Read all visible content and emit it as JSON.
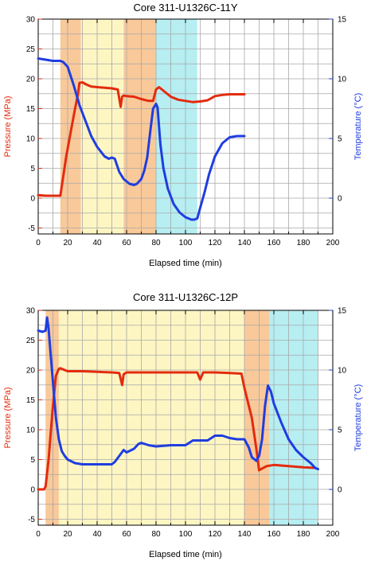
{
  "chart_data": [
    {
      "type": "line",
      "title": "Core 311-U1326C-11Y",
      "xlabel": "Elapsed time (min)",
      "ylabel_left": "Pressure (MPa)",
      "ylabel_right": "Temperature (°C)",
      "xlim": [
        0,
        200
      ],
      "ylim_left": [
        -6,
        30
      ],
      "ylim_right": [
        -3,
        15
      ],
      "x_ticks": [
        "0",
        "20",
        "40",
        "60",
        "80",
        "100",
        "120",
        "140",
        "160",
        "180",
        "200"
      ],
      "y_left_ticks": [
        "-5",
        "0",
        "5",
        "10",
        "15",
        "20",
        "25",
        "30"
      ],
      "y_right_ticks": [
        "0",
        "5",
        "10",
        "15"
      ],
      "grid": true,
      "colors": {
        "pressure": "#e32b0e",
        "temperature": "#1f3de0",
        "left_axis": "#e32b0e",
        "right_axis": "#1f3de0"
      },
      "bands": [
        {
          "x0": 15,
          "x1": 29,
          "color": "#f9c99a"
        },
        {
          "x0": 29,
          "x1": 58,
          "color": "#fdf6c3"
        },
        {
          "x0": 58,
          "x1": 80,
          "color": "#f9c99a"
        },
        {
          "x0": 80,
          "x1": 108,
          "color": "#b7eef2"
        }
      ],
      "series": [
        {
          "axis": "left",
          "x": [
            0,
            5,
            10,
            15,
            16,
            19,
            22,
            25,
            27,
            28,
            30,
            33,
            36,
            40,
            45,
            50,
            54,
            56,
            57,
            58,
            60,
            65,
            70,
            75,
            78,
            80,
            82,
            85,
            90,
            95,
            100,
            105,
            110,
            115,
            120,
            125,
            130,
            135,
            140
          ],
          "values": [
            0.5,
            0.4,
            0.4,
            0.4,
            2,
            7,
            11,
            15,
            17.5,
            19.3,
            19.4,
            19,
            18.7,
            18.6,
            18.5,
            18.4,
            18.2,
            15.3,
            17,
            17.2,
            17.1,
            17,
            16.6,
            16.3,
            16.3,
            18.2,
            18.6,
            18,
            17,
            16.5,
            16.3,
            16.1,
            16.2,
            16.4,
            17.1,
            17.3,
            17.4,
            17.4,
            17.4
          ]
        },
        {
          "axis": "right",
          "x": [
            0,
            5,
            10,
            15,
            17,
            20,
            24,
            28,
            32,
            36,
            40,
            45,
            48,
            50,
            52,
            55,
            58,
            60,
            62,
            65,
            67,
            70,
            72,
            74,
            76,
            78,
            80,
            81,
            83,
            85,
            88,
            92,
            96,
            100,
            104,
            106,
            108,
            110,
            113,
            116,
            120,
            125,
            130,
            135,
            140
          ],
          "values": [
            11.7,
            11.6,
            11.5,
            11.5,
            11.4,
            11,
            9.5,
            7.8,
            6.5,
            5.2,
            4.3,
            3.5,
            3.3,
            3.4,
            3.3,
            2.2,
            1.6,
            1.4,
            1.2,
            1.1,
            1.2,
            1.6,
            2.3,
            3.4,
            5.5,
            7.5,
            7.9,
            7.6,
            4.5,
            2.5,
            0.8,
            -0.5,
            -1.2,
            -1.6,
            -1.8,
            -1.8,
            -1.7,
            -0.8,
            0.5,
            2,
            3.5,
            4.6,
            5.1,
            5.2,
            5.2
          ]
        }
      ]
    },
    {
      "type": "line",
      "title": "Core 311-U1326C-12P",
      "xlabel": "Elapsed time (min)",
      "ylabel_left": "Pressure (MPa)",
      "ylabel_right": "Temperature (°C)",
      "xlim": [
        0,
        200
      ],
      "ylim_left": [
        -6,
        30
      ],
      "ylim_right": [
        -3,
        15
      ],
      "x_ticks": [
        "0",
        "20",
        "40",
        "60",
        "80",
        "100",
        "120",
        "140",
        "160",
        "180",
        "200"
      ],
      "y_left_ticks": [
        "-5",
        "0",
        "5",
        "10",
        "15",
        "20",
        "25",
        "30"
      ],
      "y_right_ticks": [
        "0",
        "5",
        "10",
        "15"
      ],
      "grid": true,
      "colors": {
        "pressure": "#e32b0e",
        "temperature": "#1f3de0",
        "left_axis": "#e32b0e",
        "right_axis": "#1f3de0"
      },
      "bands": [
        {
          "x0": 5,
          "x1": 14,
          "color": "#f9c99a"
        },
        {
          "x0": 14,
          "x1": 140,
          "color": "#fdf6c3"
        },
        {
          "x0": 140,
          "x1": 157,
          "color": "#f9c99a"
        },
        {
          "x0": 157,
          "x1": 190,
          "color": "#b7eef2"
        }
      ],
      "series": [
        {
          "axis": "left",
          "x": [
            0,
            4,
            5,
            7,
            10,
            12,
            14,
            15,
            20,
            30,
            40,
            50,
            55,
            57,
            58,
            60,
            70,
            80,
            90,
            100,
            108,
            110,
            112,
            120,
            130,
            138,
            140,
            142,
            145,
            148,
            150,
            152,
            155,
            160,
            170,
            180,
            188
          ],
          "values": [
            0,
            0,
            0.5,
            5,
            14,
            19,
            20.2,
            20.3,
            19.8,
            19.8,
            19.7,
            19.6,
            19.5,
            17.5,
            19.3,
            19.6,
            19.6,
            19.6,
            19.6,
            19.6,
            19.6,
            18.4,
            19.6,
            19.6,
            19.5,
            19.4,
            17,
            15,
            12,
            7,
            3.2,
            3.5,
            3.9,
            4.1,
            3.9,
            3.7,
            3.6
          ]
        },
        {
          "axis": "right",
          "x": [
            0,
            3,
            5,
            6,
            7,
            8,
            10,
            12,
            14,
            16,
            18,
            20,
            25,
            30,
            40,
            50,
            52,
            55,
            58,
            60,
            65,
            68,
            70,
            75,
            80,
            90,
            100,
            105,
            110,
            115,
            120,
            125,
            130,
            135,
            140,
            143,
            145,
            148,
            150,
            152,
            154,
            156,
            158,
            160,
            165,
            170,
            175,
            180,
            185,
            188,
            190
          ],
          "values": [
            13.3,
            13.2,
            13.3,
            14.4,
            13.5,
            12,
            9,
            6,
            4.2,
            3.2,
            2.8,
            2.5,
            2.2,
            2.1,
            2.1,
            2.1,
            2.3,
            2.8,
            3.3,
            3.1,
            3.4,
            3.8,
            3.9,
            3.7,
            3.6,
            3.7,
            3.7,
            4.1,
            4.1,
            4.1,
            4.5,
            4.5,
            4.3,
            4.2,
            4.2,
            3.5,
            2.7,
            2.4,
            2.8,
            4.2,
            7,
            8.7,
            8.2,
            7.2,
            5.6,
            4.2,
            3.3,
            2.7,
            2.2,
            1.8,
            1.7
          ]
        }
      ]
    }
  ]
}
